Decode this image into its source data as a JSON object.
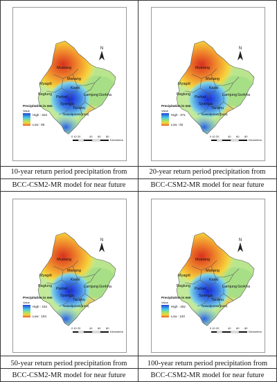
{
  "panels": [
    {
      "caption_line1": "10-year return period precipitation from",
      "caption_line2": "BCC-CSM2-MR model for near future",
      "legend_high": "High : 323",
      "legend_low": "Low : 65"
    },
    {
      "caption_line1": "20-year return period precipitation from",
      "caption_line2": "BCC-CSM2-MR model for near future",
      "legend_high": "High : 371",
      "legend_low": "Low : 82"
    },
    {
      "caption_line1": "50-year return period precipitation from",
      "caption_line2": "BCC-CSM2-MR model for near future",
      "legend_high": "High : 434",
      "legend_low": "Low : 103"
    },
    {
      "caption_line1": "100-year return period precipitation from",
      "caption_line2": "BCC-CSM2-MR model for near future",
      "legend_high": "High : 462",
      "legend_low": "Low : 120"
    }
  ],
  "map": {
    "north": "N",
    "legend_title": "Precipitation in mm",
    "legend_value": "Value",
    "scale_ticks": [
      "0 10 20",
      "40",
      "60",
      "80"
    ],
    "scale_unit": "Kilometers",
    "districts": [
      "Mustang",
      "Manang",
      "Myagdi",
      "Baglung",
      "Kaski",
      "Parbat",
      "Lamjung",
      "Gorkha",
      "Syangja",
      "Tanahu",
      "Nawalparasi(East)"
    ]
  },
  "colors": {
    "high": "#1f3fd6",
    "mid": "#9fdd6a",
    "low": "#e8542a"
  }
}
